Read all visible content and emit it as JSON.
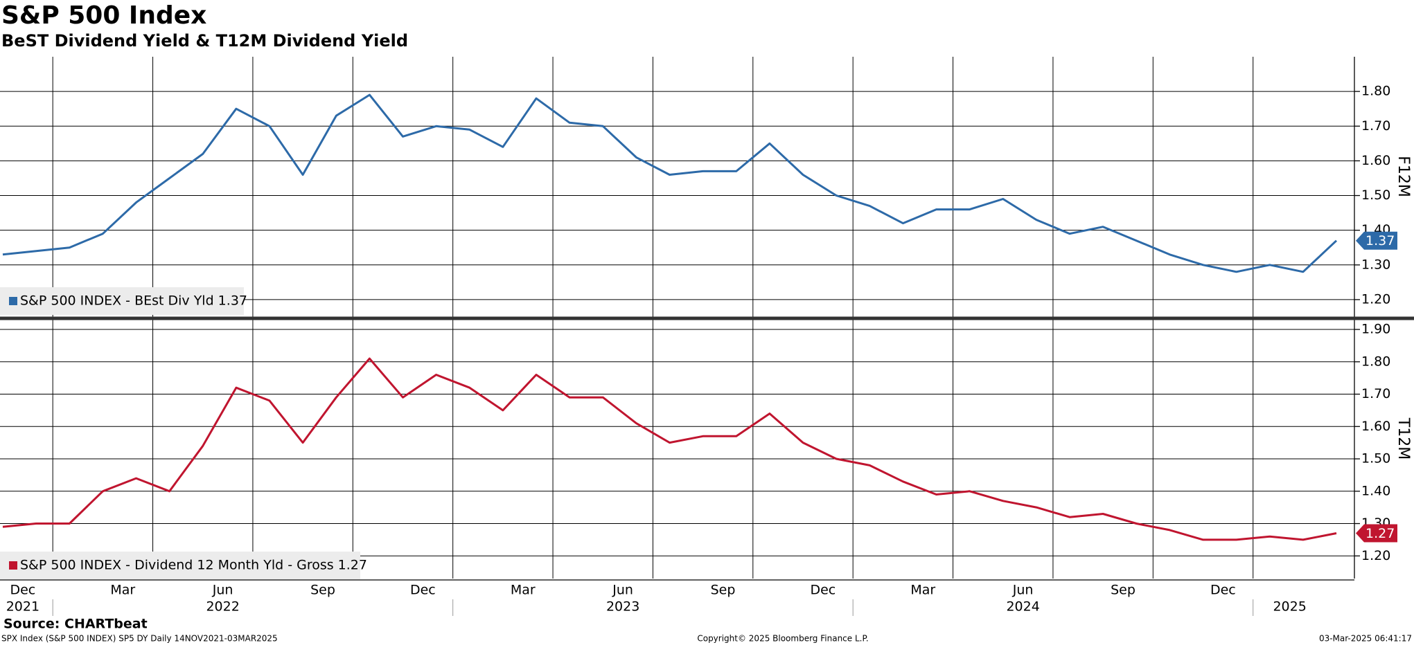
{
  "header": {
    "title": "S&P 500 Index",
    "subtitle": "BeST Dividend Yield & T12M Dividend Yield"
  },
  "footer": {
    "source": "Source: CHARTbeat",
    "description": "SPX Index (S&P 500 INDEX) SP5 DY  Daily 14NOV2021-03MAR2025",
    "copyright": "Copyright© 2025 Bloomberg Finance L.P.",
    "timestamp": "03-Mar-2025 06:41:17"
  },
  "chart_data": [
    {
      "type": "line",
      "axis_label": "F12M",
      "x": [
        "2021-11",
        "2021-12",
        "2022-01",
        "2022-02",
        "2022-03",
        "2022-04",
        "2022-05",
        "2022-06",
        "2022-07",
        "2022-08",
        "2022-09",
        "2022-10",
        "2022-11",
        "2022-12",
        "2023-01",
        "2023-02",
        "2023-03",
        "2023-04",
        "2023-05",
        "2023-06",
        "2023-07",
        "2023-08",
        "2023-09",
        "2023-10",
        "2023-11",
        "2023-12",
        "2024-01",
        "2024-02",
        "2024-03",
        "2024-04",
        "2024-05",
        "2024-06",
        "2024-07",
        "2024-08",
        "2024-09",
        "2024-10",
        "2024-11",
        "2024-12",
        "2025-01",
        "2025-02",
        "2025-03"
      ],
      "xlim": [
        "2021-11",
        "2025-03"
      ],
      "series": [
        {
          "name": "S&P 500 INDEX - BEst Div Yld 1.37",
          "color": "#2d6aa8",
          "values": [
            1.33,
            1.34,
            1.35,
            1.39,
            1.48,
            1.55,
            1.62,
            1.75,
            1.7,
            1.56,
            1.73,
            1.79,
            1.67,
            1.7,
            1.69,
            1.64,
            1.78,
            1.71,
            1.7,
            1.61,
            1.56,
            1.57,
            1.57,
            1.65,
            1.56,
            1.5,
            1.47,
            1.42,
            1.46,
            1.46,
            1.49,
            1.43,
            1.39,
            1.41,
            1.37,
            1.33,
            1.3,
            1.28,
            1.3,
            1.28,
            1.37
          ]
        }
      ],
      "ylim": [
        1.15,
        1.9
      ],
      "yticks": [
        {
          "value": 1.2,
          "label": "1.20"
        },
        {
          "value": 1.3,
          "label": "1.30"
        },
        {
          "value": 1.4,
          "label": "1.40"
        },
        {
          "value": 1.5,
          "label": "1.50"
        },
        {
          "value": 1.6,
          "label": "1.60"
        },
        {
          "value": 1.7,
          "label": "1.70"
        },
        {
          "value": 1.8,
          "label": "1.80"
        }
      ],
      "grid": true
    },
    {
      "type": "line",
      "axis_label": "T12M",
      "x": [
        "2021-11",
        "2021-12",
        "2022-01",
        "2022-02",
        "2022-03",
        "2022-04",
        "2022-05",
        "2022-06",
        "2022-07",
        "2022-08",
        "2022-09",
        "2022-10",
        "2022-11",
        "2022-12",
        "2023-01",
        "2023-02",
        "2023-03",
        "2023-04",
        "2023-05",
        "2023-06",
        "2023-07",
        "2023-08",
        "2023-09",
        "2023-10",
        "2023-11",
        "2023-12",
        "2024-01",
        "2024-02",
        "2024-03",
        "2024-04",
        "2024-05",
        "2024-06",
        "2024-07",
        "2024-08",
        "2024-09",
        "2024-10",
        "2024-11",
        "2024-12",
        "2025-01",
        "2025-02",
        "2025-03"
      ],
      "xlim": [
        "2021-11",
        "2025-03"
      ],
      "series": [
        {
          "name": "S&P 500 INDEX - Dividend 12 Month Yld - Gross 1.27",
          "color": "#c0152f",
          "values": [
            1.29,
            1.3,
            1.3,
            1.4,
            1.44,
            1.4,
            1.54,
            1.72,
            1.68,
            1.55,
            1.69,
            1.81,
            1.69,
            1.76,
            1.72,
            1.65,
            1.76,
            1.69,
            1.69,
            1.61,
            1.55,
            1.57,
            1.57,
            1.64,
            1.55,
            1.5,
            1.48,
            1.43,
            1.39,
            1.4,
            1.37,
            1.35,
            1.32,
            1.33,
            1.3,
            1.28,
            1.25,
            1.25,
            1.26,
            1.25,
            1.27
          ]
        }
      ],
      "ylim": [
        1.13,
        1.93
      ],
      "yticks": [
        {
          "value": 1.2,
          "label": "1.20"
        },
        {
          "value": 1.3,
          "label": "1.30"
        },
        {
          "value": 1.4,
          "label": "1.40"
        },
        {
          "value": 1.5,
          "label": "1.50"
        },
        {
          "value": 1.6,
          "label": "1.60"
        },
        {
          "value": 1.7,
          "label": "1.70"
        },
        {
          "value": 1.8,
          "label": "1.80"
        },
        {
          "value": 1.9,
          "label": "1.90"
        }
      ],
      "xticks": [
        {
          "value": "2021-12",
          "label": "Dec"
        },
        {
          "value": "2022-03",
          "label": "Mar"
        },
        {
          "value": "2022-06",
          "label": "Jun"
        },
        {
          "value": "2022-09",
          "label": "Sep"
        },
        {
          "value": "2022-12",
          "label": "Dec"
        },
        {
          "value": "2023-03",
          "label": "Mar"
        },
        {
          "value": "2023-06",
          "label": "Jun"
        },
        {
          "value": "2023-09",
          "label": "Sep"
        },
        {
          "value": "2023-12",
          "label": "Dec"
        },
        {
          "value": "2024-03",
          "label": "Mar"
        },
        {
          "value": "2024-06",
          "label": "Jun"
        },
        {
          "value": "2024-09",
          "label": "Sep"
        },
        {
          "value": "2024-12",
          "label": "Dec"
        }
      ],
      "year_ticks": [
        {
          "value": "2021-12",
          "label": "2021"
        },
        {
          "value": "2022-06",
          "label": "2022"
        },
        {
          "value": "2023-06",
          "label": "2023"
        },
        {
          "value": "2024-06",
          "label": "2024"
        },
        {
          "value": "2025-02",
          "label": "2025"
        }
      ],
      "grid": true
    }
  ]
}
